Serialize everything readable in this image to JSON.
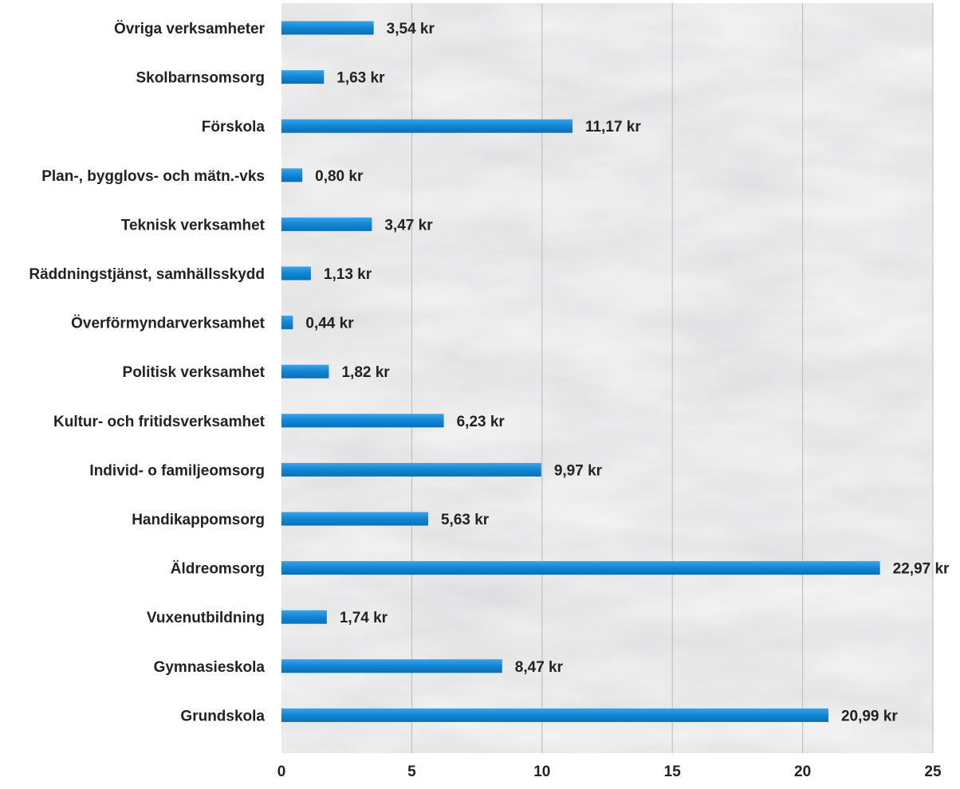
{
  "chart_data": {
    "type": "bar",
    "orientation": "horizontal",
    "categories": [
      "Övriga verksamheter",
      "Skolbarnsomsorg",
      "Förskola",
      "Plan-, bygglovs- och mätn.-vks",
      "Teknisk verksamhet",
      "Räddningstjänst, samhällsskydd",
      "Överförmyndarverksamhet",
      "Politisk verksamhet",
      "Kultur- och fritidsverksamhet",
      "Individ- o familjeomsorg",
      "Handikappomsorg",
      "Äldreomsorg",
      "Vuxenutbildning",
      "Gymnasieskola",
      "Grundskola"
    ],
    "values": [
      3.54,
      1.63,
      11.17,
      0.8,
      3.47,
      1.13,
      0.44,
      1.82,
      6.23,
      9.97,
      5.63,
      22.97,
      1.74,
      8.47,
      20.99
    ],
    "data_labels": [
      "3,54 kr",
      "1,63 kr",
      "11,17 kr",
      "0,80 kr",
      "3,47 kr",
      "1,13 kr",
      "0,44 kr",
      "1,82 kr",
      "6,23 kr",
      "9,97 kr",
      "5,63 kr",
      "22,97 kr",
      "1,74 kr",
      "8,47 kr",
      "20,99 kr"
    ],
    "x_ticks": [
      "0",
      "5",
      "10",
      "15",
      "20",
      "25"
    ],
    "xlim": [
      0,
      25
    ],
    "title": "",
    "xlabel": "",
    "ylabel": "",
    "grid": "vertical",
    "legend": "none",
    "bar_color": "#0f86d6",
    "background": "marble-texture"
  }
}
